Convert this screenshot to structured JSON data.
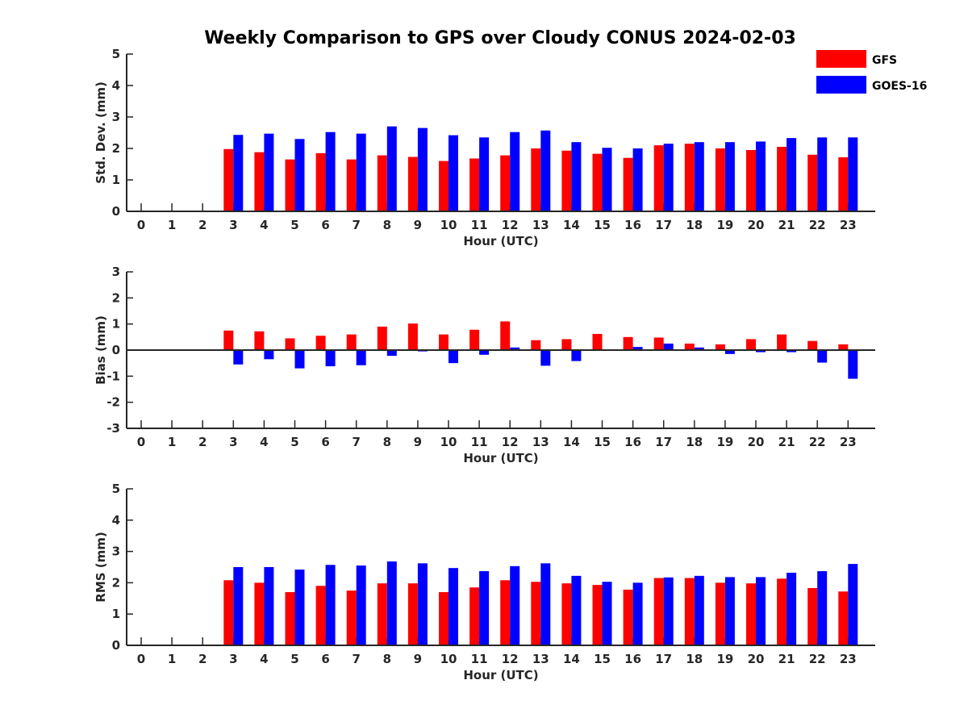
{
  "title": "Weekly Comparison to GPS over Cloudy CONUS 2024-02-03",
  "colors": {
    "GFS": "#ff0000",
    "GOES-16": "#0000ff",
    "axis": "#262626"
  },
  "legend": {
    "placement": "top-right",
    "entries": [
      "GFS",
      "GOES-16"
    ]
  },
  "chart_data": [
    {
      "type": "bar",
      "ylabel": "Std. Dev. (mm)",
      "xlabel": "Hour (UTC)",
      "ylim": [
        0,
        5
      ],
      "yticks": [
        0,
        1,
        2,
        3,
        4,
        5
      ],
      "categories": [
        "0",
        "1",
        "2",
        "3",
        "4",
        "5",
        "6",
        "7",
        "8",
        "9",
        "10",
        "11",
        "12",
        "13",
        "14",
        "15",
        "16",
        "17",
        "18",
        "19",
        "20",
        "21",
        "22",
        "23"
      ],
      "series": [
        {
          "name": "GFS",
          "values": [
            null,
            null,
            null,
            1.98,
            1.88,
            1.65,
            1.85,
            1.65,
            1.78,
            1.73,
            1.6,
            1.68,
            1.78,
            2.0,
            1.93,
            1.83,
            1.7,
            2.1,
            2.15,
            2.0,
            1.95,
            2.05,
            1.8,
            1.72
          ]
        },
        {
          "name": "GOES-16",
          "values": [
            null,
            null,
            null,
            2.43,
            2.47,
            2.3,
            2.52,
            2.47,
            2.7,
            2.65,
            2.42,
            2.35,
            2.52,
            2.57,
            2.2,
            2.02,
            2.0,
            2.15,
            2.2,
            2.2,
            2.22,
            2.33,
            2.35,
            2.35
          ]
        }
      ]
    },
    {
      "type": "bar",
      "ylabel": "Bias (mm)",
      "xlabel": "Hour (UTC)",
      "ylim": [
        -3,
        3
      ],
      "yticks": [
        -3,
        -2,
        -1,
        0,
        1,
        2,
        3
      ],
      "categories": [
        "0",
        "1",
        "2",
        "3",
        "4",
        "5",
        "6",
        "7",
        "8",
        "9",
        "10",
        "11",
        "12",
        "13",
        "14",
        "15",
        "16",
        "17",
        "18",
        "19",
        "20",
        "21",
        "22",
        "23"
      ],
      "series": [
        {
          "name": "GFS",
          "values": [
            null,
            null,
            null,
            0.75,
            0.72,
            0.45,
            0.55,
            0.6,
            0.9,
            1.02,
            0.6,
            0.78,
            1.1,
            0.38,
            0.42,
            0.62,
            0.5,
            0.48,
            0.25,
            0.22,
            0.42,
            0.6,
            0.35,
            0.22
          ]
        },
        {
          "name": "GOES-16",
          "values": [
            null,
            null,
            null,
            -0.55,
            -0.35,
            -0.7,
            -0.62,
            -0.58,
            -0.22,
            -0.05,
            -0.5,
            -0.18,
            0.1,
            -0.6,
            -0.42,
            0.03,
            0.12,
            0.25,
            0.1,
            -0.15,
            -0.08,
            -0.08,
            -0.48,
            -1.1
          ]
        }
      ]
    },
    {
      "type": "bar",
      "ylabel": "RMS (mm)",
      "xlabel": "Hour (UTC)",
      "ylim": [
        0,
        5
      ],
      "yticks": [
        0,
        1,
        2,
        3,
        4,
        5
      ],
      "categories": [
        "0",
        "1",
        "2",
        "3",
        "4",
        "5",
        "6",
        "7",
        "8",
        "9",
        "10",
        "11",
        "12",
        "13",
        "14",
        "15",
        "16",
        "17",
        "18",
        "19",
        "20",
        "21",
        "22",
        "23"
      ],
      "series": [
        {
          "name": "GFS",
          "values": [
            null,
            null,
            null,
            2.08,
            2.0,
            1.7,
            1.9,
            1.75,
            1.98,
            1.98,
            1.7,
            1.85,
            2.08,
            2.03,
            1.98,
            1.93,
            1.78,
            2.15,
            2.15,
            2.0,
            1.98,
            2.13,
            1.83,
            1.72
          ]
        },
        {
          "name": "GOES-16",
          "values": [
            null,
            null,
            null,
            2.5,
            2.5,
            2.42,
            2.57,
            2.55,
            2.68,
            2.62,
            2.47,
            2.37,
            2.53,
            2.62,
            2.22,
            2.03,
            2.0,
            2.17,
            2.22,
            2.18,
            2.18,
            2.32,
            2.37,
            2.6
          ]
        }
      ]
    }
  ]
}
